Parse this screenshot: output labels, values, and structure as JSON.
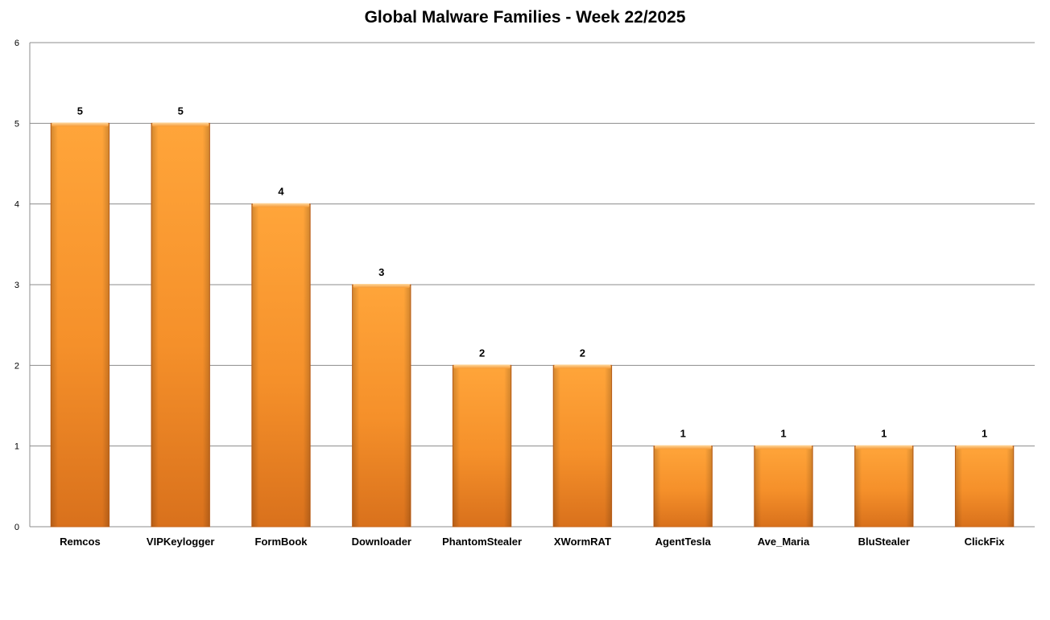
{
  "chart_data": {
    "type": "bar",
    "title": "Global Malware Families - Week 22/2025",
    "categories": [
      "Remcos",
      "VIPKeylogger",
      "FormBook",
      "Downloader",
      "PhantomStealer",
      "XWormRAT",
      "AgentTesla",
      "Ave_Maria",
      "BluStealer",
      "ClickFix"
    ],
    "values": [
      5,
      5,
      4,
      3,
      2,
      2,
      1,
      1,
      1,
      1
    ],
    "xlabel": "",
    "ylabel": "",
    "ylim": [
      0,
      6
    ],
    "yticks": [
      0,
      1,
      2,
      3,
      4,
      5,
      6
    ],
    "grid": true,
    "legend": "none",
    "colors": {
      "bar_light": "#ffa53a",
      "bar_mid": "#f5902a",
      "bar_dark": "#d9711c",
      "bar_edge": "#c9651a",
      "gridline": "#8c8c8c",
      "axis": "#8c8c8c"
    }
  }
}
